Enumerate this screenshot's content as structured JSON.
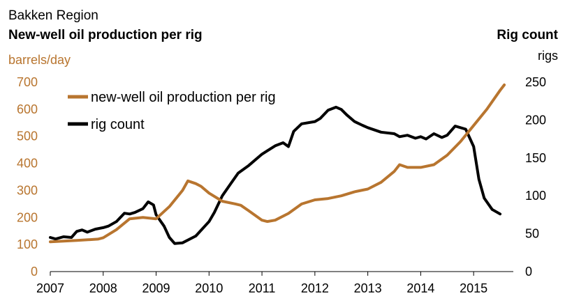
{
  "chart_data": {
    "type": "line",
    "region_label": "Bakken Region",
    "title": "New-well oil production per rig",
    "right_title": "Rig count",
    "ylabel_left": "barrels/day",
    "ylabel_right": "rigs",
    "left_ylim": [
      0,
      700
    ],
    "right_ylim": [
      0,
      250
    ],
    "left_ticks": [
      "0",
      "100",
      "200",
      "300",
      "400",
      "500",
      "600",
      "700"
    ],
    "right_ticks": [
      "0",
      "50",
      "100",
      "150",
      "200",
      "250"
    ],
    "x_ticks": [
      "2007",
      "2008",
      "2009",
      "2010",
      "2011",
      "2012",
      "2013",
      "2014",
      "2015"
    ],
    "xlim": [
      2007.0,
      2015.75
    ],
    "grid": false,
    "legend_position": "top-left",
    "colors": {
      "production": "#B8752F",
      "rigs": "#000000",
      "axis_text_left": "#B8752F",
      "axis_text_right": "#000000"
    },
    "series": [
      {
        "name": "new-well oil production per rig",
        "axis": "left",
        "color": "#B8752F",
        "points": [
          [
            2007.0,
            110
          ],
          [
            2007.5,
            115
          ],
          [
            2007.9,
            120
          ],
          [
            2008.0,
            125
          ],
          [
            2008.25,
            155
          ],
          [
            2008.5,
            195
          ],
          [
            2008.75,
            200
          ],
          [
            2009.0,
            195
          ],
          [
            2009.25,
            240
          ],
          [
            2009.5,
            300
          ],
          [
            2009.6,
            335
          ],
          [
            2009.75,
            325
          ],
          [
            2009.85,
            315
          ],
          [
            2010.0,
            290
          ],
          [
            2010.25,
            260
          ],
          [
            2010.5,
            250
          ],
          [
            2010.6,
            245
          ],
          [
            2010.75,
            225
          ],
          [
            2011.0,
            190
          ],
          [
            2011.1,
            185
          ],
          [
            2011.25,
            190
          ],
          [
            2011.5,
            215
          ],
          [
            2011.75,
            250
          ],
          [
            2012.0,
            265
          ],
          [
            2012.25,
            270
          ],
          [
            2012.5,
            280
          ],
          [
            2012.75,
            295
          ],
          [
            2013.0,
            305
          ],
          [
            2013.25,
            330
          ],
          [
            2013.5,
            370
          ],
          [
            2013.6,
            395
          ],
          [
            2013.75,
            385
          ],
          [
            2014.0,
            385
          ],
          [
            2014.25,
            395
          ],
          [
            2014.5,
            430
          ],
          [
            2014.75,
            480
          ],
          [
            2015.0,
            540
          ],
          [
            2015.25,
            600
          ],
          [
            2015.5,
            670
          ],
          [
            2015.58,
            690
          ]
        ]
      },
      {
        "name": "rig count",
        "axis": "right",
        "color": "#000000",
        "points": [
          [
            2007.0,
            45
          ],
          [
            2007.1,
            43
          ],
          [
            2007.25,
            46
          ],
          [
            2007.4,
            45
          ],
          [
            2007.5,
            53
          ],
          [
            2007.6,
            55
          ],
          [
            2007.7,
            52
          ],
          [
            2007.85,
            56
          ],
          [
            2008.0,
            58
          ],
          [
            2008.1,
            60
          ],
          [
            2008.25,
            66
          ],
          [
            2008.4,
            77
          ],
          [
            2008.5,
            76
          ],
          [
            2008.6,
            78
          ],
          [
            2008.75,
            83
          ],
          [
            2008.85,
            92
          ],
          [
            2008.95,
            88
          ],
          [
            2009.0,
            75
          ],
          [
            2009.15,
            60
          ],
          [
            2009.25,
            45
          ],
          [
            2009.35,
            37
          ],
          [
            2009.5,
            38
          ],
          [
            2009.75,
            47
          ],
          [
            2010.0,
            66
          ],
          [
            2010.1,
            78
          ],
          [
            2010.25,
            100
          ],
          [
            2010.4,
            115
          ],
          [
            2010.55,
            130
          ],
          [
            2010.75,
            140
          ],
          [
            2011.0,
            155
          ],
          [
            2011.25,
            166
          ],
          [
            2011.4,
            170
          ],
          [
            2011.5,
            165
          ],
          [
            2011.6,
            185
          ],
          [
            2011.75,
            195
          ],
          [
            2012.0,
            198
          ],
          [
            2012.1,
            202
          ],
          [
            2012.25,
            213
          ],
          [
            2012.4,
            217
          ],
          [
            2012.5,
            214
          ],
          [
            2012.6,
            207
          ],
          [
            2012.75,
            198
          ],
          [
            2012.9,
            193
          ],
          [
            2013.0,
            190
          ],
          [
            2013.25,
            184
          ],
          [
            2013.5,
            182
          ],
          [
            2013.6,
            178
          ],
          [
            2013.75,
            180
          ],
          [
            2013.9,
            176
          ],
          [
            2014.0,
            178
          ],
          [
            2014.1,
            175
          ],
          [
            2014.25,
            182
          ],
          [
            2014.4,
            177
          ],
          [
            2014.5,
            180
          ],
          [
            2014.65,
            192
          ],
          [
            2014.85,
            188
          ],
          [
            2015.0,
            165
          ],
          [
            2015.1,
            122
          ],
          [
            2015.2,
            97
          ],
          [
            2015.35,
            82
          ],
          [
            2015.5,
            76
          ]
        ]
      }
    ]
  }
}
